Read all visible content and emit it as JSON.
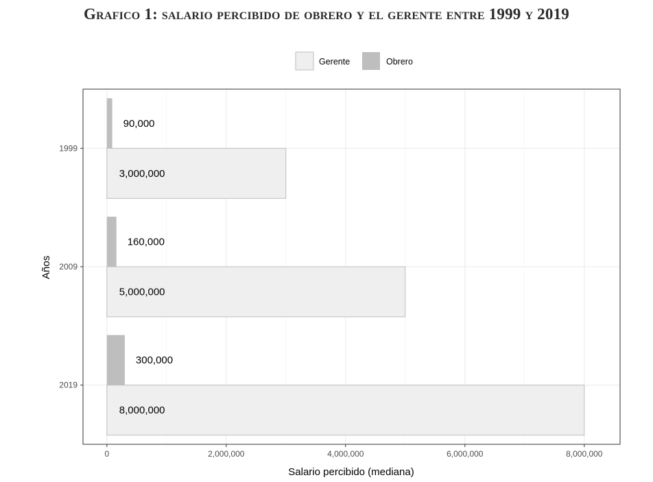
{
  "title": "Grafico 1: salario percibido de obrero y el gerente entre 1999 y 2019",
  "chart_data": {
    "type": "bar",
    "orientation": "horizontal",
    "categories": [
      "1999",
      "2009",
      "2019"
    ],
    "series": [
      {
        "name": "Gerente",
        "color": "#efefef",
        "stroke": "#bdbdbd",
        "values": [
          3000000,
          5000000,
          8000000
        ],
        "labels": [
          "3,000,000",
          "5,000,000",
          "8,000,000"
        ]
      },
      {
        "name": "Obrero",
        "color": "#bebebe",
        "stroke": "#bebebe",
        "values": [
          90000,
          160000,
          300000
        ],
        "labels": [
          "90,000",
          "160,000",
          "300,000"
        ]
      }
    ],
    "xlabel": "Salario percibido (mediana)",
    "ylabel": "Años",
    "xlim": [
      -400000,
      8600000
    ],
    "xticks": [
      0,
      2000000,
      4000000,
      6000000,
      8000000
    ],
    "xtick_labels": [
      "0",
      "2,000,000",
      "4,000,000",
      "6,000,000",
      "8,000,000"
    ],
    "grid": true,
    "legend_position": "top"
  }
}
